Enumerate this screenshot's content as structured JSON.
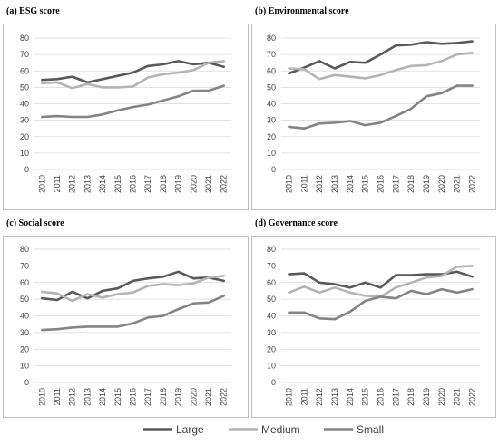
{
  "figure": {
    "legend": [
      {
        "key": "large",
        "label": "Large",
        "color": "#595959"
      },
      {
        "key": "medium",
        "label": "Medium",
        "color": "#b4b4b4"
      },
      {
        "key": "small",
        "label": "Small",
        "color": "#848484"
      }
    ]
  },
  "chart_data": [
    {
      "type": "line",
      "title": "(a)   ESG score",
      "x": [
        "2010",
        "2011",
        "2012",
        "2013",
        "2014",
        "2015",
        "2016",
        "2017",
        "2018",
        "2019",
        "2020",
        "2021",
        "2022"
      ],
      "ylim": [
        0,
        80
      ],
      "yticks": [
        0,
        10,
        20,
        30,
        40,
        50,
        60,
        70,
        80
      ],
      "grid": true,
      "series": [
        {
          "name": "Large",
          "values": [
            54.5,
            55,
            56.5,
            53,
            55,
            57,
            59,
            63,
            64,
            66,
            64,
            65,
            62.5
          ]
        },
        {
          "name": "Medium",
          "values": [
            52.5,
            53,
            49.5,
            52,
            50,
            50,
            50.5,
            56,
            58,
            59,
            60.5,
            65,
            66
          ]
        },
        {
          "name": "Small",
          "values": [
            32,
            32.5,
            32,
            32,
            33.5,
            36,
            38,
            39.5,
            42,
            44.5,
            48,
            48,
            51
          ]
        }
      ]
    },
    {
      "type": "line",
      "title": "(b)   Environmental score",
      "x": [
        "2010",
        "2011",
        "2012",
        "2013",
        "2014",
        "2015",
        "2016",
        "2017",
        "2018",
        "2019",
        "2020",
        "2021",
        "2022"
      ],
      "ylim": [
        0,
        80
      ],
      "yticks": [
        0,
        10,
        20,
        30,
        40,
        50,
        60,
        70,
        80
      ],
      "grid": true,
      "series": [
        {
          "name": "Large",
          "values": [
            58.5,
            62,
            66,
            61.5,
            65.5,
            65,
            70,
            75.5,
            76,
            77.5,
            76.5,
            77,
            78
          ]
        },
        {
          "name": "Medium",
          "values": [
            61.5,
            61,
            55,
            57.5,
            56.5,
            55.5,
            57.5,
            60.5,
            63,
            63.5,
            66,
            70,
            71
          ]
        },
        {
          "name": "Small",
          "values": [
            26,
            25,
            28,
            28.5,
            29.5,
            27,
            28.5,
            32.5,
            37,
            44.5,
            46.5,
            51,
            51
          ]
        }
      ]
    },
    {
      "type": "line",
      "title": "(c)   Social score",
      "x": [
        "2010",
        "2011",
        "2012",
        "2013",
        "2014",
        "2015",
        "2016",
        "2017",
        "2018",
        "2019",
        "2020",
        "2021",
        "2022"
      ],
      "ylim": [
        0,
        80
      ],
      "yticks": [
        0,
        10,
        20,
        30,
        40,
        50,
        60,
        70,
        80
      ],
      "grid": true,
      "series": [
        {
          "name": "Large",
          "values": [
            50.5,
            49.5,
            54.5,
            50.5,
            55,
            56.5,
            61,
            62.5,
            63.5,
            66.5,
            62.5,
            63,
            61
          ]
        },
        {
          "name": "Medium",
          "values": [
            54.5,
            53.5,
            49,
            53,
            51,
            53,
            54,
            58,
            59,
            58.5,
            59.5,
            63,
            64
          ]
        },
        {
          "name": "Small",
          "values": [
            31.5,
            32,
            33,
            33.5,
            33.5,
            33.5,
            35.5,
            39,
            40,
            44,
            47.5,
            48,
            52
          ]
        }
      ]
    },
    {
      "type": "line",
      "title": "(d)   Governance score",
      "x": [
        "2010",
        "2011",
        "2012",
        "2013",
        "2014",
        "2015",
        "2016",
        "2017",
        "2018",
        "2019",
        "2020",
        "2021",
        "2022"
      ],
      "ylim": [
        0,
        80
      ],
      "yticks": [
        0,
        10,
        20,
        30,
        40,
        50,
        60,
        70,
        80
      ],
      "grid": true,
      "series": [
        {
          "name": "Large",
          "values": [
            65,
            65.5,
            60,
            59,
            57,
            60,
            57,
            64.5,
            64.5,
            65,
            65,
            66.5,
            63.5
          ]
        },
        {
          "name": "Medium",
          "values": [
            54,
            57.5,
            54,
            57,
            54,
            52,
            51.5,
            57,
            60,
            63,
            64,
            69.5,
            70
          ]
        },
        {
          "name": "Small",
          "values": [
            42,
            42,
            38.5,
            38,
            42.5,
            49,
            51.5,
            50.5,
            55,
            53,
            56,
            54,
            56
          ]
        }
      ]
    }
  ]
}
